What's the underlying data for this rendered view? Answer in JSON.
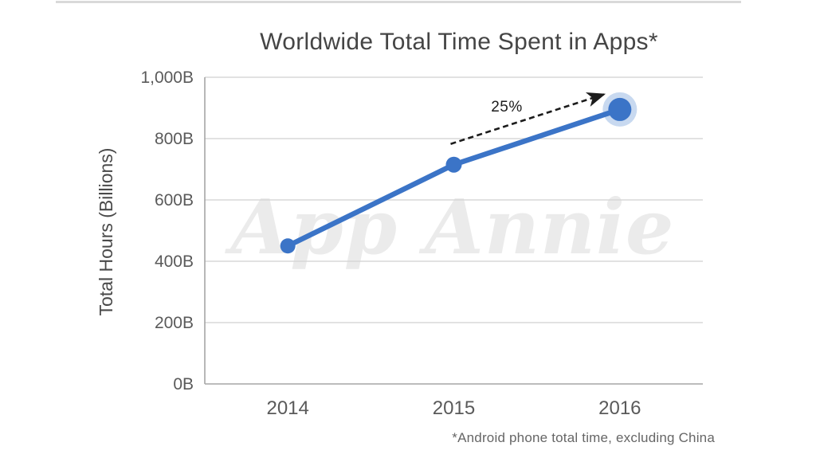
{
  "page": {
    "background": "#ffffff",
    "top_border_color": "#d9d9d9"
  },
  "chart_data": {
    "type": "line",
    "title": "Worldwide Total Time Spent in Apps*",
    "ylabel": "Total Hours (Billions)",
    "xlabel": "",
    "categories": [
      "2014",
      "2015",
      "2016"
    ],
    "values": [
      450,
      715,
      895
    ],
    "ylim": [
      0,
      1000
    ],
    "yticks": [
      {
        "value": 0,
        "label": "0B"
      },
      {
        "value": 200,
        "label": "200B"
      },
      {
        "value": 400,
        "label": "400B"
      },
      {
        "value": 600,
        "label": "600B"
      },
      {
        "value": 800,
        "label": "800B"
      },
      {
        "value": 1000,
        "label": "1,000B"
      }
    ],
    "grid": true,
    "legend": "none",
    "annotation": {
      "text": "25%",
      "type": "dashed-arrow",
      "from_category": "2015",
      "to_category": "2016"
    },
    "highlight_last_point": true,
    "watermark": "App Annie",
    "footnote": "*Android phone total time, excluding China",
    "colors": {
      "line": "#3b74c7",
      "point": "#3b74c7",
      "point_halo": "#c8d9f0",
      "grid": "#d8d8d8",
      "axis": "#a5a5a5",
      "title_text": "#454545",
      "axis_label_text": "#4a4a4a",
      "tick_text": "#5a5a5a",
      "annotation_text": "#1c1c1c",
      "watermark_text": "#ebebeb",
      "footnote_text": "#666666"
    }
  }
}
